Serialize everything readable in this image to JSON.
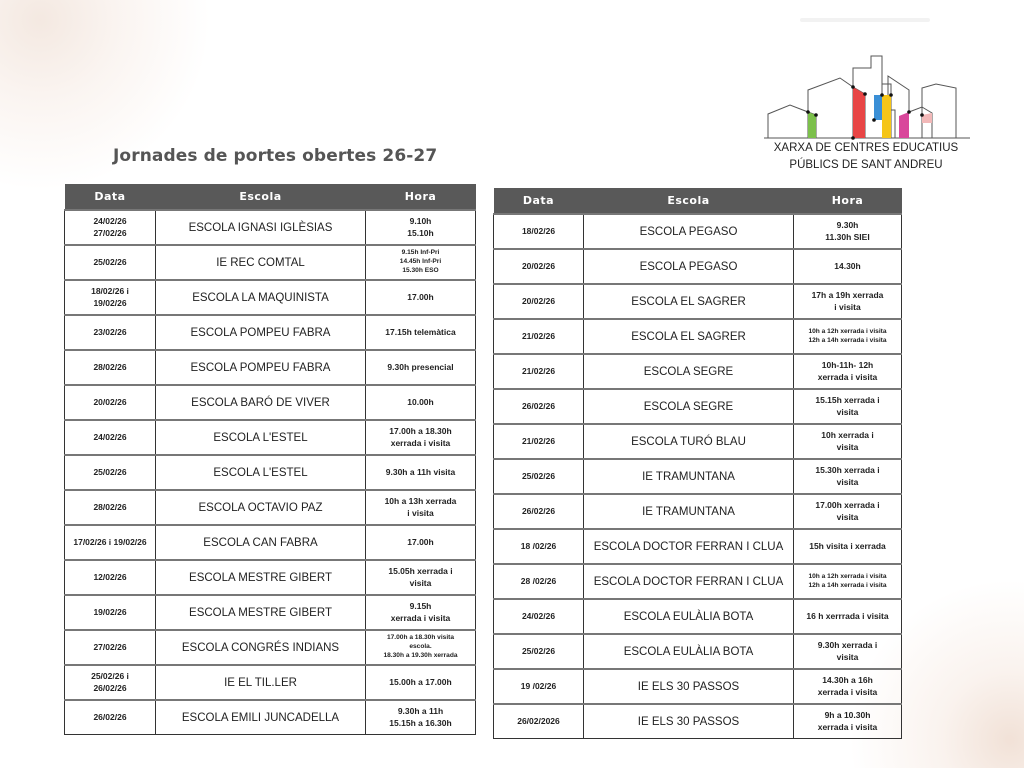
{
  "title": "Jornades de portes obertes 26-27",
  "logo": {
    "line1": "XARXA DE CENTRES EDUCATIUS",
    "line2": "PÚBLICS DE SANT ANDREU",
    "colors": [
      "#7cc04b",
      "#e84545",
      "#3a8fd6",
      "#f5c518",
      "#d9479b",
      "#f2b8b8"
    ]
  },
  "columns": [
    "Data",
    "Escola",
    "Hora"
  ],
  "left_table": [
    {
      "data": "24/02/26\n27/02/26",
      "escola": "ESCOLA IGNASI IGLÈSIAS",
      "hora": "9.10h\n15.10h"
    },
    {
      "data": "25/02/26",
      "escola": "IE REC COMTAL",
      "hora": "9.15h Inf-Pri\n14.45h Inf-Pri\n15.30h ESO",
      "small": true
    },
    {
      "data": "18/02/26 i\n19/02/26",
      "escola": "ESCOLA LA MAQUINISTA",
      "hora": "17.00h"
    },
    {
      "data": "23/02/26",
      "escola": "ESCOLA POMPEU FABRA",
      "hora": "17.15h telemàtica"
    },
    {
      "data": "28/02/26",
      "escola": "ESCOLA POMPEU FABRA",
      "hora": "9.30h presencial"
    },
    {
      "data": "20/02/26",
      "escola": "ESCOLA BARÓ DE VIVER",
      "hora": "10.00h"
    },
    {
      "data": "24/02/26",
      "escola": "ESCOLA L'ESTEL",
      "hora": "17.00h a 18.30h\nxerrada i visita"
    },
    {
      "data": "25/02/26",
      "escola": "ESCOLA L'ESTEL",
      "hora": "9.30h a 11h visita"
    },
    {
      "data": "28/02/26",
      "escola": "ESCOLA OCTAVIO PAZ",
      "hora": "10h a 13h xerrada\ni visita"
    },
    {
      "data": "17/02/26 i 19/02/26",
      "escola": "ESCOLA CAN FABRA",
      "hora": "17.00h"
    },
    {
      "data": "12/02/26",
      "escola": "ESCOLA MESTRE GIBERT",
      "hora": "15.05h xerrada i\nvisita"
    },
    {
      "data": "19/02/26",
      "escola": "ESCOLA  MESTRE GIBERT",
      "hora": "9.15h\nxerrada i visita"
    },
    {
      "data": "27/02/26",
      "escola": "ESCOLA CONGRÉS INDIANS",
      "hora": "17.00h a 18.30h visita\nescola.\n18.30h a 19.30h xerrada",
      "small": true
    },
    {
      "data": "25/02/26 i\n26/02/26",
      "escola": "IE EL TIL.LER",
      "hora": "15.00h  a 17.00h"
    },
    {
      "data": "26/02/26",
      "escola": "ESCOLA EMILI JUNCADELLA",
      "hora": "9.30h a 11h\n15.15h a 16.30h"
    }
  ],
  "right_table": [
    {
      "data": "18/02/26",
      "escola": "ESCOLA  PEGASO",
      "hora": "9.30h\n11.30h SIEI"
    },
    {
      "data": "20/02/26",
      "escola": "ESCOLA  PEGASO",
      "hora": "14.30h"
    },
    {
      "data": "20/02/26",
      "escola": "ESCOLA EL SAGRER",
      "hora": "17h a 19h xerrada\ni visita"
    },
    {
      "data": "21/02/26",
      "escola": "ESCOLA EL SAGRER",
      "hora": "10h a 12h  xerrada i visita\n12h a 14h xerrada i visita",
      "small": true
    },
    {
      "data": "21/02/26",
      "escola": "ESCOLA SEGRE",
      "hora": "10h-11h- 12h\nxerrada i visita"
    },
    {
      "data": "26/02/26",
      "escola": "ESCOLA SEGRE",
      "hora": "15.15h xerrada i\nvisita"
    },
    {
      "data": "21/02/26",
      "escola": "ESCOLA TURÓ BLAU",
      "hora": "10h xerrada i\nvisita"
    },
    {
      "data": "25/02/26",
      "escola": "IE TRAMUNTANA",
      "hora": "15.30h xerrada i\nvisita"
    },
    {
      "data": "26/02/26",
      "escola": "IE TRAMUNTANA",
      "hora": "17.00h xerrada i\nvisita"
    },
    {
      "data": "18 /02/26",
      "escola": "ESCOLA DOCTOR FERRAN I CLUA",
      "hora": "15h visita  i xerrada"
    },
    {
      "data": "28 /02/26",
      "escola": "ESCOLA DOCTOR FERRAN I CLUA",
      "hora": "10h a 12h xerrada i visita\n12h a 14h xerrada i visita",
      "small": true
    },
    {
      "data": "24/02/26",
      "escola": "ESCOLA EULÀLIA BOTA",
      "hora": "16 h xerrrada i visita"
    },
    {
      "data": "25/02/26",
      "escola": "ESCOLA EULÀLIA BOTA",
      "hora": "9.30h xerrada i\nvisita"
    },
    {
      "data": "19 /02/26",
      "escola": "IE ELS 30 PASSOS",
      "hora": "14.30h a 16h\nxerrada i visita"
    },
    {
      "data": "26/02/2026",
      "escola": "IE ELS 30 PASSOS",
      "hora": "9h a 10.30h\nxerrada i visita"
    }
  ]
}
